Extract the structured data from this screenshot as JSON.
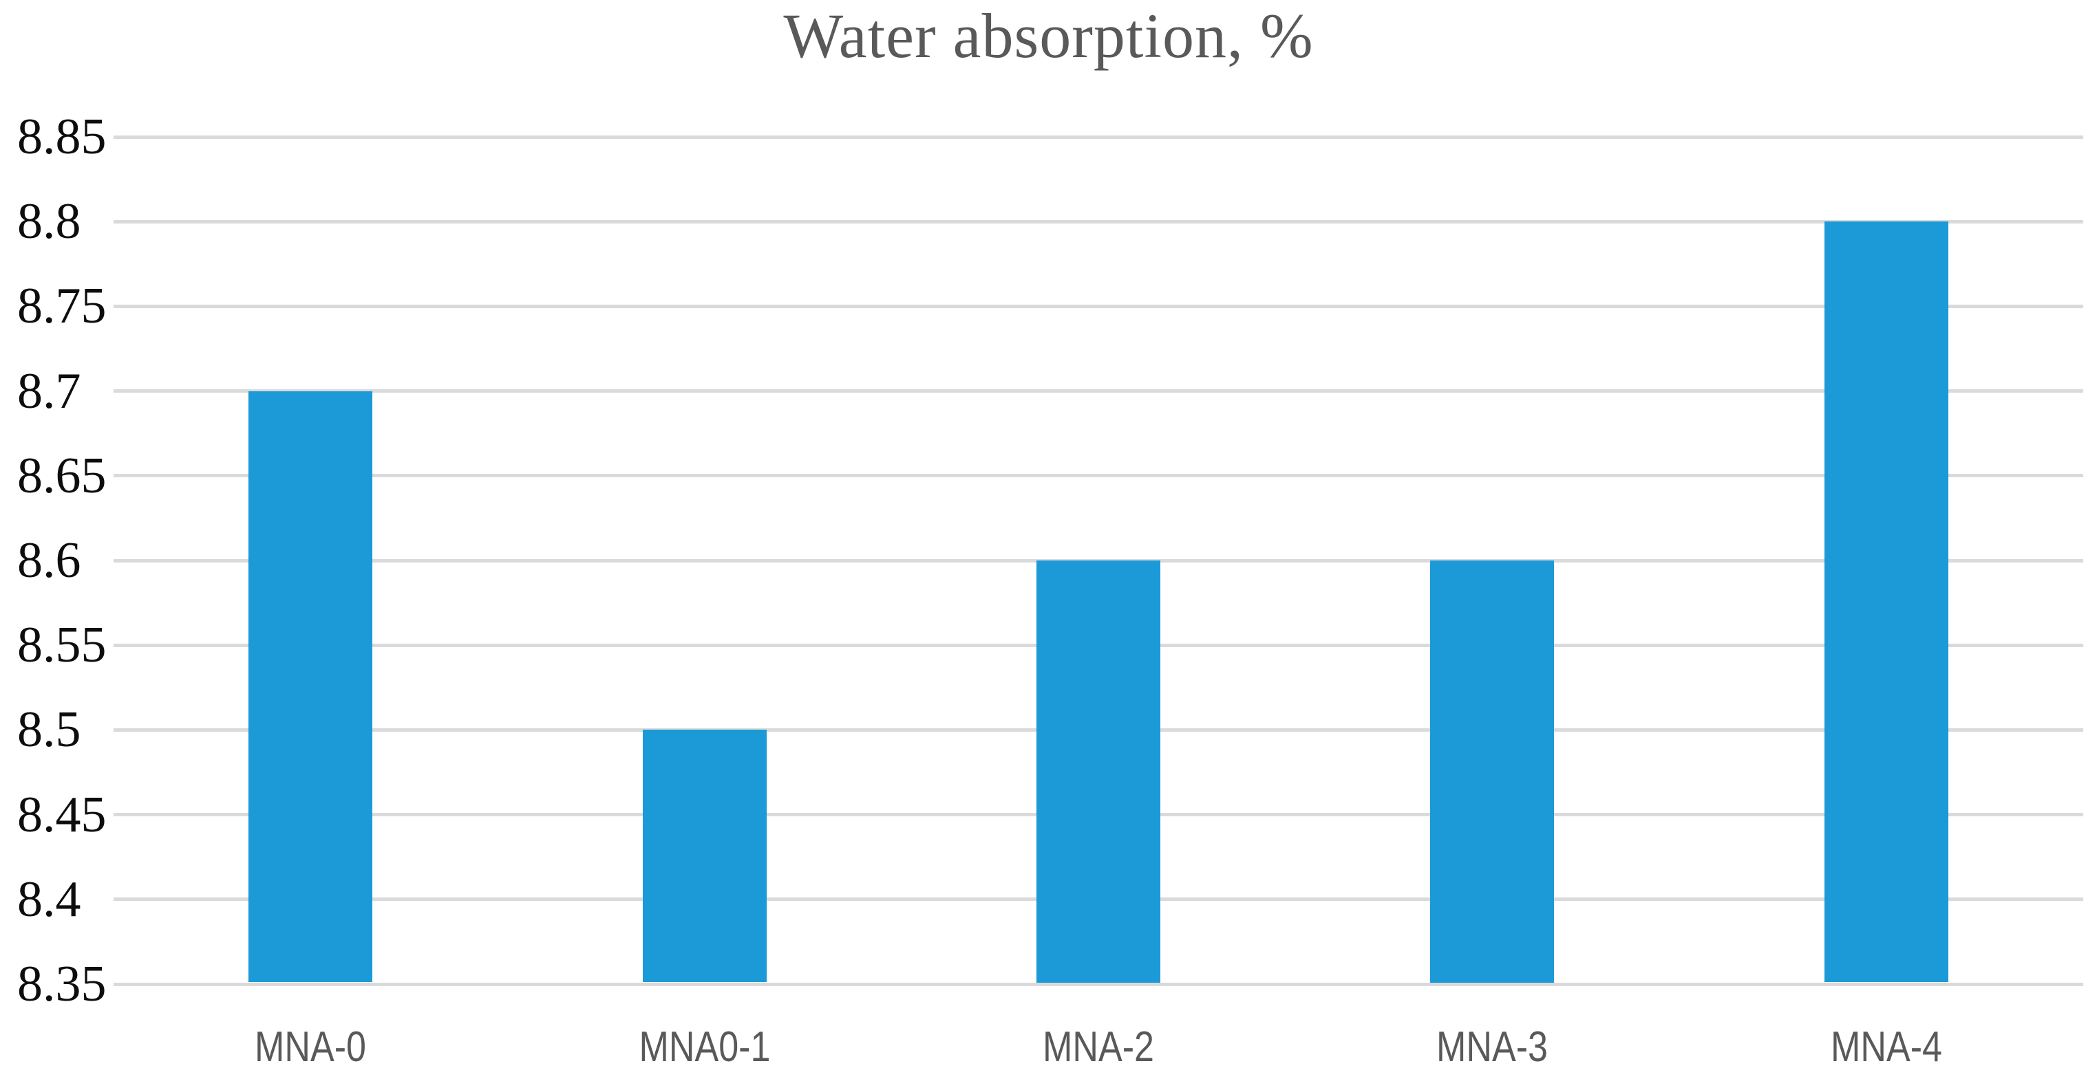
{
  "chart_data": {
    "type": "bar",
    "title": "Water absorption, %",
    "categories": [
      "MNA-0",
      "MNA0-1",
      "MNA-2",
      "MNA-3",
      "MNA-4"
    ],
    "values": [
      8.7,
      8.5,
      8.6,
      8.6,
      8.8
    ],
    "xlabel": "",
    "ylabel": "",
    "ylim": [
      8.35,
      8.85
    ],
    "ytick_step": 0.05,
    "ytick_labels": [
      "8.35",
      "8.4",
      "8.45",
      "8.5",
      "8.55",
      "8.6",
      "8.65",
      "8.7",
      "8.75",
      "8.8",
      "8.85"
    ],
    "grid": true,
    "legend": false,
    "series_count": 1,
    "colors": {
      "bar": "#1b9ad7",
      "gridline": "#dadada",
      "title_text": "#595959",
      "ytick_text": "#0d0d0d",
      "xtick_text": "#595959",
      "background": "#ffffff"
    }
  }
}
